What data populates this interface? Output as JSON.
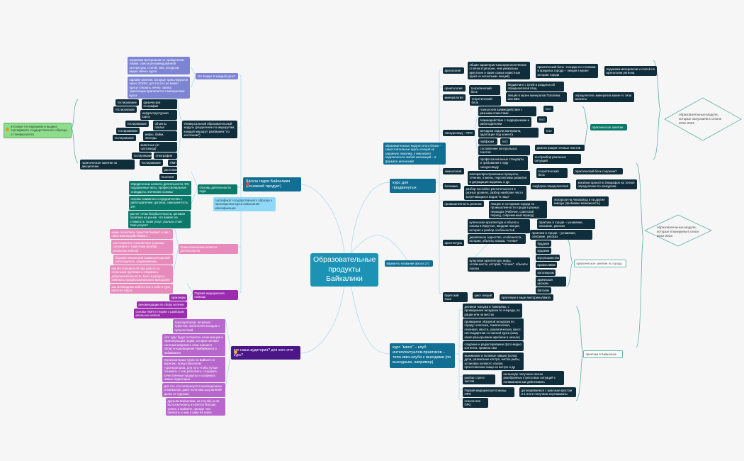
{
  "center": "Образовательные продукты Байкалики",
  "final_test": "итоговое тестирование и выдача сертификата государственного образца от Университета",
  "school": {
    "title": "Школа гидов Байкалики (основной продукт)",
    "lesson": {
      "label": "что входит в каждый урок?",
      "items": [
        "подшивка материалов по пройденным темам, список рекомендованной литературы, статей, книг, ресурсов, видео запись курса",
        "офлайн-занятия, которые транслируются через ZOOM, для тех кто не может присутствовать лично. запись трансляции прилагается к материалам курса"
      ]
    },
    "module": {
      "label": "Универсальный образовательный модуль (разделение по маршрутам, каждый маршрут разбираем \"по косточкам\")",
      "topics": [
        {
          "name": "физическая география",
          "test": "тестирование"
        },
        {
          "name": "инфраструктурная карта",
          "test": "тестирование"
        },
        {
          "name": "объекты показа",
          "test": "тестирование"
        },
        {
          "name": "мифы, байки, легенды",
          "test": "тестирование"
        },
        {
          "name": "животные (от охотоведа)",
          "test": "тестирование"
        },
        {
          "name": "этнография",
          "test": "тестирование"
        },
        {
          "name": "ПМП",
          "test": "тестирование",
          "practice": "практическое занятие по дисциплине"
        },
        {
          "name": "растения"
        },
        {
          "name": "геология"
        }
      ]
    },
    "basics": {
      "label": "Основы деятельности гида",
      "items": [
        "Юридические аспекты деятельности, ФЗ, подзаконные акты, профессиональные стандарты, этические основы",
        "основы взаимного сотрудничества с работодателем: договор, самозанятость, ИП",
        "расчет точки безубыточности, ценовая политика на рынке, что влияет на стоимость твоих услуг, сколько стоит твоя услуга?"
      ]
    },
    "certificate": "сертификат государственного образца о прохождении курса повышения квалификации",
    "psychology": {
      "label": "Психологические аспекты деятельности",
      "items": [
        "какие психотипы туристов бывают и как с ними взаимодействовать",
        "как сохранять спокойствие в разных ситуациях с туристами (разбор реальных кейсов)",
        "базовая психология взаимоотношений работодатель, подрядчиками",
        "как восстановиться при работе со сложными группами и сохранить доброжелательность, быть в ресурсе, избежать профессионального выгорания",
        "как необходимо заботиться о себе в туре, работая гидом"
      ]
    },
    "first_aid": {
      "label": "Первая медицинская помощь",
      "items": [
        "практикум",
        "рекомендации по сбору аптечки",
        "основы ПМП в теории с разбором реальных кейсов"
      ]
    }
  },
  "audience": {
    "title": "кто наша аудитория? для кого этот курс?",
    "items": [
      "туроператоров, активных туристов, любителей походов и путешествий",
      "этот курс будет интересен начинающим и практикующим гидам, которые желают систематизировать свои знания в области краеведения Прибайкалья и Забайкалья",
      "Организаторам туров на Байкал и в Бурятию, представителям туроператоров, для того чтобы лучше понимать с чем работаете, создавать качественные продукты и осваивать новые территории",
      "для тех, кто интересуется краеведением и Байкалом, даже если ваш род занятий далек от туризма",
      "друзьям Байкалики, на случай, если вы соскучились и хочется больше узнать о Байкале, прежде чем приехать к нам в один из туров"
    ]
  },
  "advanced": {
    "title": "курс для продвинутых",
    "note": "образовательные модули этого блока – самостоятельные курсы лекций на заданную тематику, к ним может подключаться любой желающий – в формате интенсива!",
    "archaeology": {
      "label": "археология",
      "a": "общая характеристика археологических стоянок в регионе, чем уникальны иркутские и какие самые известные (цикл из нескольких лекций)",
      "b": "практический блок –поездки по стоянкам в пределах города – лекция в музее истории города",
      "c": "подшивка материалов и статей по археологии региона"
    },
    "ornithology": {
      "label": "орнитология",
      "a": "теоретический блок",
      "b": "бёрдвочинг с Олей и раздатка об определителей птиц"
    },
    "mineralogy": {
      "label": "минералогия",
      "a": "теоретический блок",
      "b": "лекция в музее минералов Полатика или ВБС",
      "c": "определитель минералов какие-то типа апатиты"
    },
    "guide_pro": {
      "label": "Экскурсовод – ПРО",
      "items": [
        {
          "name": "психология взаимодействия с разными клиентами",
          "next": "тест"
        },
        {
          "name": "взаимодействие с подрядчиками и работодателем",
          "next": "тест"
        },
        {
          "name": "методики подачи материала, адаптация под клиента",
          "next": "тест"
        },
        {
          "name": "лайфхаки",
          "next": "тест"
        },
        {
          "name": "составление контрольных текстов",
          "next": "демонстрация готовых текстов"
        },
        {
          "name": "профессиональные стандарты и требования к гиду-экскурсоводу",
          "next": "тест/разбор реальных ситуаций"
        }
      ],
      "practice": "практическое занятие"
    },
    "limnology": {
      "label": "лимнология",
      "a": "малораспространенные процессы, течения, отмены, перспективы развития и деградации водоёма, и др.",
      "b": "теоретический блок",
      "c": "практический блок с музеем?"
    },
    "botany": {
      "label": "ботаника",
      "a": "разбор послойно растительности в разных уровнях, разбор наиболее часто встречающихся видов \"в лицо\"",
      "b": "подборка определителей",
      "c": "квиз/викторина/тест/марафон на точное определение по конкурсам"
    },
    "industry": {
      "label": "промышленность региона",
      "a": "лекции от историков города по промышленности города в разных периодах (Рабочие, советский период, современный период)",
      "b": "экскурсии на Авиазавод и на другие заводы (пробиваю возможность)"
    },
    "architecture": {
      "label": "архитектура",
      "merchant": "купеческая архитектура и объекты показа в Иркутске, вводная лекция, история и разбор особенностей",
      "merchant_practice": "практика в городе – узнавание, описание, рассказ",
      "wooden": "деревянное зодчество, особенности, история, объекты показа, \"чтение\"",
      "wooden_practice": "практика в городе – узнавание, описание, рассказ",
      "religious": "культовая архитектура, виды, особенности, история, \"чтение\", объекты показа",
      "religions": [
        "буддизм",
        "иудаизм",
        "мусульманство",
        "православие",
        "католицизм",
        "армянская церковь",
        "баптизм"
      ],
      "city_practice": "практическое занятие по городу"
    },
    "buryat": {
      "label": "бурятский язык",
      "a": "цикл лекций",
      "b": "практикум в виде викторины/квиза"
    }
  },
  "name_variants": "варианты названия Школа 2.0",
  "meat": {
    "title": "курс \"мясо\" – клуб интеллектуалов-практиков – типа квиз-клуба с выездами (по выходным, например)",
    "items": [
      "дневная поездка в Тажераны, с проведением экскурсии по очереди, по рации или на местах",
      "проведение обзорной экскурсии по городу: классика, тематическая, сезонная, квеста, романтическая, квест, нестандартная со сменой курса (кому какая разыгрываем жребием в начале)",
      "создание и редактирование фото-видео контента, правила сми",
      "выживание и полевые навыки (колка дров, разжигание костра, чистка рыбы, установка полевого лагеря, приготовление пищи на костре и др",
      "разбор стресс-листов",
      "Первая медицинская помощь ПРО",
      "психология ПРО"
    ],
    "stress_result": "на выходе получаем список разобранных стрессовых ситуаций с пониманием как действовать",
    "aid_result": "договариваемся с красным крестом и в итоге получаем сертификаты",
    "practice": "практика в Байкалике"
  },
  "season_2021": "образовательные модули, которые запускаем в сезоне 2021-2022",
  "season_2022": "образовательные модули, которые планируем в сезон 2022-2023",
  "colors": {
    "center": "#1c93b4",
    "dark": "#0f2d3a",
    "teal": "#0b7a6b",
    "pink": "#e78bbd",
    "purple": "#9a2cae",
    "orchid": "#b867cc",
    "line": "#a9dcee"
  }
}
